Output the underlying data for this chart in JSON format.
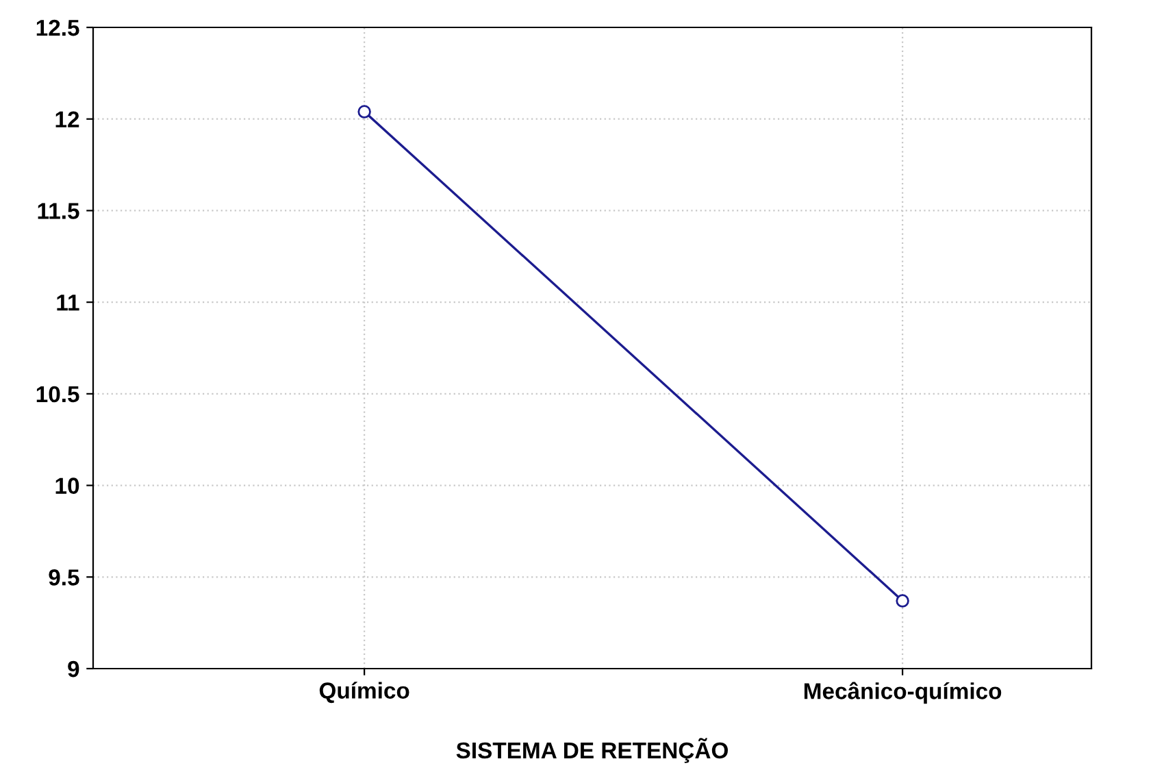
{
  "chart_data": {
    "type": "line",
    "xlabel": "SISTEMA DE RETENÇÃO",
    "categories": [
      "Químico",
      "Mecânico-químico"
    ],
    "series": [
      {
        "color": "#1c1c8f",
        "values": [
          12.04,
          9.37
        ]
      }
    ],
    "ylim": [
      9,
      12.5
    ],
    "yticks": [
      9,
      {
        "value": 9.5,
        "label": "9.5"
      },
      10,
      {
        "value": 10.5,
        "label": "10.5"
      },
      11,
      {
        "value": 11.5,
        "label": "11.5"
      },
      12,
      {
        "value": 12.5,
        "label": "12.5"
      }
    ],
    "grid": true,
    "marker": "circle",
    "line_style": "solid"
  }
}
